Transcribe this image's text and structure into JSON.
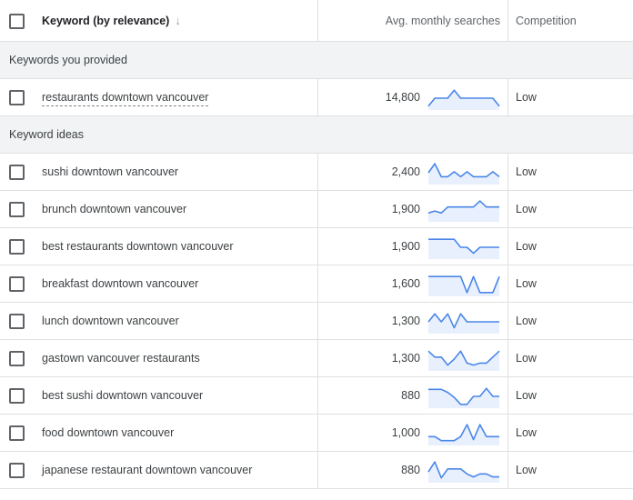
{
  "header": {
    "keyword_label": "Keyword (by relevance)",
    "arrow_glyph": "↓",
    "avg_label": "Avg. monthly searches",
    "competition_label": "Competition"
  },
  "sections": {
    "provided_label": "Keywords you provided",
    "ideas_label": "Keyword ideas"
  },
  "colors": {
    "trend_line": "#4a86e8",
    "trend_fill": "#e8f0fe",
    "section_bg": "#f1f3f4"
  },
  "provided": [
    {
      "keyword": "restaurants downtown vancouver",
      "searches": "14,800",
      "competition": "Low",
      "trend": [
        0.1,
        0.5,
        0.5,
        0.5,
        0.9,
        0.5,
        0.5,
        0.5,
        0.5,
        0.5,
        0.5,
        0.1
      ]
    }
  ],
  "ideas": [
    {
      "keyword": "sushi downtown vancouver",
      "searches": "2,400",
      "competition": "Low",
      "trend": [
        0.5,
        0.95,
        0.3,
        0.3,
        0.55,
        0.3,
        0.55,
        0.3,
        0.3,
        0.3,
        0.55,
        0.3
      ]
    },
    {
      "keyword": "brunch downtown vancouver",
      "searches": "1,900",
      "competition": "Low",
      "trend": [
        0.35,
        0.45,
        0.35,
        0.65,
        0.65,
        0.65,
        0.65,
        0.65,
        0.95,
        0.65,
        0.65,
        0.65
      ]
    },
    {
      "keyword": "best restaurants downtown vancouver",
      "searches": "1,900",
      "competition": "Low",
      "trend": [
        0.9,
        0.9,
        0.9,
        0.9,
        0.9,
        0.5,
        0.5,
        0.2,
        0.5,
        0.5,
        0.5,
        0.5
      ]
    },
    {
      "keyword": "breakfast downtown vancouver",
      "searches": "1,600",
      "competition": "Low",
      "trend": [
        0.9,
        0.9,
        0.9,
        0.9,
        0.9,
        0.9,
        0.1,
        0.9,
        0.1,
        0.1,
        0.1,
        0.9
      ]
    },
    {
      "keyword": "lunch downtown vancouver",
      "searches": "1,300",
      "competition": "Low",
      "trend": [
        0.5,
        0.9,
        0.5,
        0.9,
        0.2,
        0.9,
        0.5,
        0.5,
        0.5,
        0.5,
        0.5,
        0.5
      ]
    },
    {
      "keyword": "gastown vancouver restaurants",
      "searches": "1,300",
      "competition": "Low",
      "trend": [
        0.9,
        0.6,
        0.6,
        0.2,
        0.5,
        0.9,
        0.3,
        0.2,
        0.3,
        0.3,
        0.6,
        0.9
      ]
    },
    {
      "keyword": "best sushi downtown vancouver",
      "searches": "880",
      "competition": "Low",
      "trend": [
        0.85,
        0.85,
        0.85,
        0.7,
        0.45,
        0.1,
        0.1,
        0.5,
        0.5,
        0.9,
        0.5,
        0.5
      ]
    },
    {
      "keyword": "food downtown vancouver",
      "searches": "1,000",
      "competition": "Low",
      "trend": [
        0.35,
        0.35,
        0.15,
        0.15,
        0.15,
        0.35,
        0.95,
        0.2,
        0.95,
        0.35,
        0.35,
        0.35
      ]
    },
    {
      "keyword": "japanese restaurant downtown vancouver",
      "searches": "880",
      "competition": "Low",
      "trend": [
        0.45,
        0.95,
        0.15,
        0.6,
        0.6,
        0.6,
        0.35,
        0.2,
        0.35,
        0.35,
        0.2,
        0.2
      ]
    }
  ]
}
